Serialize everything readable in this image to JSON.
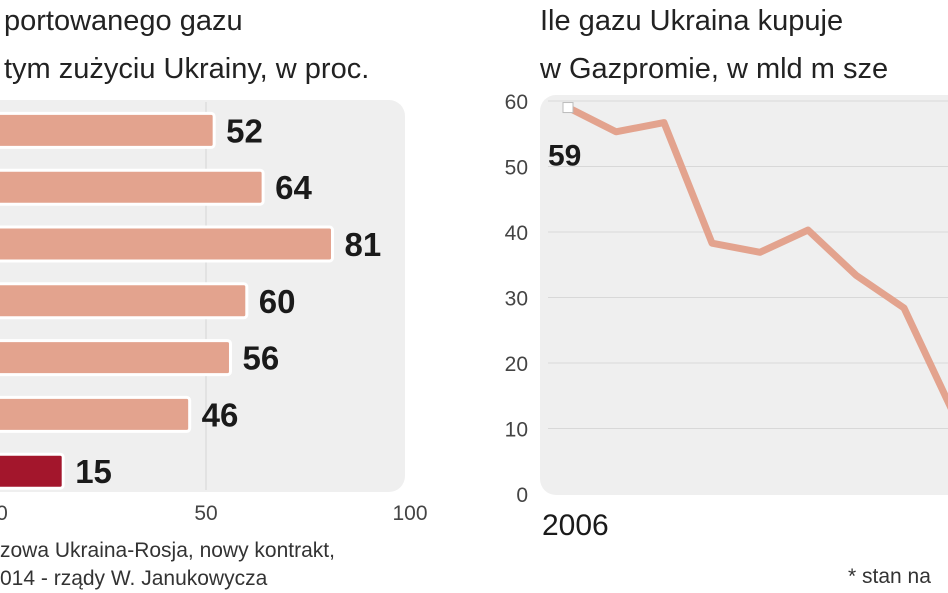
{
  "chart_data": [
    {
      "type": "bar",
      "orientation": "horizontal",
      "title_lines": [
        "portowanego gazu",
        "tym zużyciu Ukrainy, w proc."
      ],
      "categories": [
        null,
        null,
        null,
        null,
        null,
        null,
        null
      ],
      "values": [
        52,
        64,
        81,
        60,
        56,
        46,
        15
      ],
      "colors": [
        "#e3a38e",
        "#e3a38e",
        "#e3a38e",
        "#e3a38e",
        "#e3a38e",
        "#e3a38e",
        "#a3162c"
      ],
      "xlim": [
        0,
        100
      ],
      "xticks": [
        0,
        50,
        100
      ],
      "grid": true,
      "note_lines": [
        "zowa Ukraina-Rosja, nowy kontrakt,",
        "014 - rządy W. Janukowycza"
      ]
    },
    {
      "type": "line",
      "title_lines": [
        "Ile gazu Ukraina kupuje",
        "w Gazpromie, w mld m sze"
      ],
      "categories": [
        "2006",
        null,
        null,
        null,
        null,
        null,
        null,
        null,
        null
      ],
      "series": [
        {
          "color": "#e3a38e",
          "values": [
            59,
            55.3,
            56.7,
            38.3,
            36.9,
            40.3,
            33.4,
            28.4,
            12.8
          ]
        }
      ],
      "ylim": [
        0,
        60
      ],
      "yticks": [
        0,
        10,
        20,
        30,
        40,
        50,
        60
      ],
      "grid": true,
      "footnote": "* stan na"
    }
  ]
}
